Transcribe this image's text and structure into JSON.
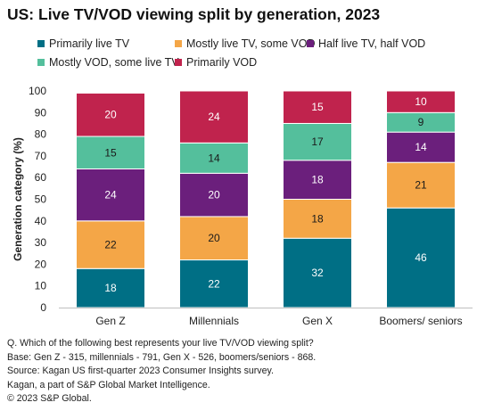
{
  "title": "US: Live TV/VOD viewing split by generation, 2023",
  "chart_data": {
    "type": "bar",
    "stacked": true,
    "categories": [
      "Gen Z",
      "Millennials",
      "Gen X",
      "Boomers/ seniors"
    ],
    "ylabel": "Generation category (%)",
    "xlabel": "",
    "ylim": [
      0,
      100
    ],
    "yticks": [
      0,
      10,
      20,
      30,
      40,
      50,
      60,
      70,
      80,
      90,
      100
    ],
    "grid": false,
    "legend_position": "top",
    "series": [
      {
        "name": "Primarily live TV",
        "color": "#006f85",
        "values": [
          18,
          22,
          32,
          46
        ]
      },
      {
        "name": "Mostly live TV, some VOD",
        "color": "#f4a647",
        "values": [
          22,
          20,
          18,
          21
        ]
      },
      {
        "name": "Half live TV, half VOD",
        "color": "#6b1f7c",
        "values": [
          24,
          20,
          18,
          14
        ]
      },
      {
        "name": "Mostly VOD, some live TV",
        "color": "#54bf9c",
        "values": [
          15,
          14,
          17,
          9
        ]
      },
      {
        "name": "Primarily VOD",
        "color": "#c0234d",
        "values": [
          20,
          24,
          15,
          10
        ]
      }
    ]
  },
  "footnotes": [
    "Q. Which of the following best represents your live TV/VOD viewing split?",
    "Base: Gen Z - 315, millennials - 791, Gen X - 526, boomers/seniors - 868.",
    "Source: Kagan US first-quarter 2023 Consumer Insights survey.",
    "Kagan, a part of S&P Global Market Intelligence.",
    "© 2023 S&P Global."
  ]
}
